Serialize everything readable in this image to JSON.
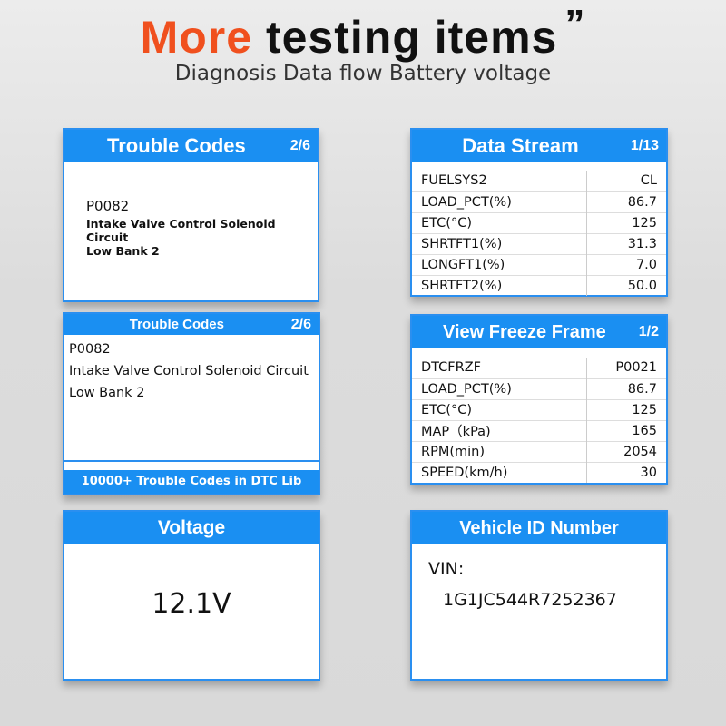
{
  "heading": {
    "highlight": "More",
    "rest": " testing items",
    "quote": "”",
    "subtitle": "Diagnosis Data flow Battery voltage"
  },
  "accent": "#1a8ff2",
  "highlight_color": "#f0501e",
  "trouble1": {
    "title": "Trouble Codes",
    "page": "2/6",
    "code": "P0082",
    "line1": "Intake Valve Control Solenoid Circuit",
    "line2": "Low Bank 2"
  },
  "trouble2": {
    "title": "Trouble Codes",
    "page": "2/6",
    "code": "P0082",
    "line1": "Intake Valve Control Solenoid Circuit",
    "line2": "Low Bank 2",
    "footer": "10000+ Trouble Codes in DTC Lib"
  },
  "datastream": {
    "title": "Data Stream",
    "page": "1/13",
    "rows": [
      [
        "FUELSYS2",
        "CL"
      ],
      [
        "LOAD_PCT(%)",
        "86.7"
      ],
      [
        "ETC(°C)",
        "125"
      ],
      [
        "SHRTFT1(%)",
        "31.3"
      ],
      [
        "LONGFT1(%)",
        "7.0"
      ],
      [
        "SHRTFT2(%)",
        "50.0"
      ]
    ]
  },
  "freeze": {
    "title": "View Freeze Frame",
    "page": "1/2",
    "rows": [
      [
        "DTCFRZF",
        "P0021"
      ],
      [
        "LOAD_PCT(%)",
        "86.7"
      ],
      [
        "ETC(°C)",
        "125"
      ],
      [
        "MAP（kPa)",
        "165"
      ],
      [
        "RPM(min)",
        "2054"
      ],
      [
        "SPEED(km/h)",
        "30"
      ]
    ]
  },
  "voltage": {
    "title": "Voltage",
    "value": "12.1V"
  },
  "vin": {
    "title": "Vehicle ID Number",
    "label": "VIN:",
    "value": "1G1JC544R7252367"
  }
}
